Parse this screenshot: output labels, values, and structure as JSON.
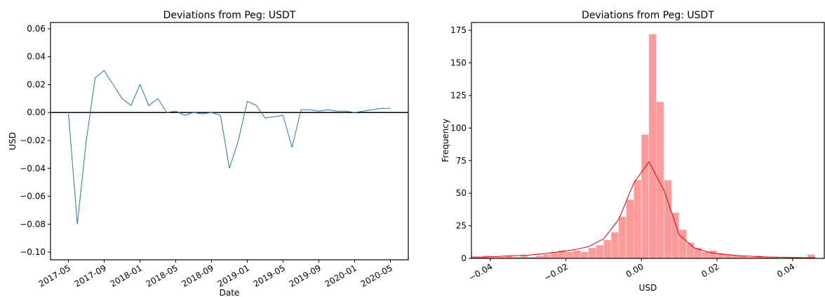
{
  "chart_data": [
    {
      "type": "line",
      "title": "Deviations from Peg: USDT",
      "x_label": "Date",
      "y_label": "USD",
      "x": [
        "2017-05",
        "2017-06",
        "2017-07",
        "2017-08",
        "2017-09",
        "2017-10",
        "2017-11",
        "2017-12",
        "2018-01",
        "2018-02",
        "2018-03",
        "2018-04",
        "2018-05",
        "2018-06",
        "2018-07",
        "2018-08",
        "2018-09",
        "2018-10",
        "2018-11",
        "2018-12",
        "2019-01",
        "2019-02",
        "2019-03",
        "2019-04",
        "2019-05",
        "2019-06",
        "2019-07",
        "2019-08",
        "2019-09",
        "2019-10",
        "2019-11",
        "2019-12",
        "2020-01",
        "2020-02",
        "2020-03",
        "2020-04",
        "2020-05"
      ],
      "series": [
        {
          "name": "USDT",
          "color": "#1f77b4",
          "values": [
            0.0,
            -0.08,
            -0.02,
            0.025,
            0.03,
            0.02,
            0.01,
            0.005,
            0.02,
            0.005,
            0.01,
            0.0,
            0.001,
            -0.002,
            0.0,
            -0.001,
            0.0,
            -0.002,
            -0.04,
            -0.02,
            0.008,
            0.005,
            -0.004,
            -0.003,
            -0.002,
            -0.025,
            0.002,
            0.002,
            0.001,
            0.002,
            0.001,
            0.001,
            0.0,
            0.001,
            0.002,
            0.003,
            0.003
          ]
        }
      ],
      "xlim": [
        "2017-03",
        "2020-07"
      ],
      "xticks": [
        "2017-05",
        "2017-09",
        "2018-01",
        "2018-05",
        "2018-09",
        "2019-01",
        "2019-05",
        "2019-09",
        "2020-01",
        "2020-05"
      ],
      "ylim": [
        -0.1055,
        0.0645
      ],
      "yticks": [
        {
          "value": -0.1,
          "label": "−0.10"
        },
        {
          "value": -0.08,
          "label": "−0.08"
        },
        {
          "value": -0.06,
          "label": "−0.06"
        },
        {
          "value": -0.04,
          "label": "−0.04"
        },
        {
          "value": -0.02,
          "label": "−0.02"
        },
        {
          "value": 0,
          "label": "0.00"
        },
        0.02,
        0.04,
        0.06
      ],
      "hline": 0
    },
    {
      "type": "histogram",
      "title": "Deviations from Peg: USDT",
      "x_label": "USD",
      "y_label": "Frequency",
      "color": "#ff9a9a",
      "bins": [
        -0.046,
        -0.044,
        -0.042,
        -0.04,
        -0.038,
        -0.036,
        -0.034,
        -0.032,
        -0.03,
        -0.028,
        -0.026,
        -0.024,
        -0.022,
        -0.02,
        -0.018,
        -0.016,
        -0.014,
        -0.012,
        -0.01,
        -0.008,
        -0.006,
        -0.004,
        -0.002,
        0.0,
        0.002,
        0.004,
        0.006,
        0.008,
        0.01,
        0.012,
        0.014,
        0.016,
        0.018,
        0.02,
        0.022,
        0.024,
        0.026,
        0.028,
        0.03,
        0.032,
        0.034,
        0.036,
        0.038,
        0.04,
        0.042,
        0.044,
        0.046,
        0.048
      ],
      "values": [
        1,
        1,
        2,
        1,
        1,
        2,
        1,
        2,
        1,
        2,
        3,
        5,
        6,
        5,
        6,
        5,
        8,
        10,
        14,
        20,
        32,
        45,
        60,
        95,
        172,
        120,
        60,
        35,
        22,
        12,
        8,
        5,
        6,
        4,
        3,
        2,
        2,
        1,
        2,
        1,
        1,
        0,
        1,
        1,
        0,
        3,
        0
      ],
      "kde": {
        "color": "#e00000",
        "x": [
          -0.046,
          -0.042,
          -0.038,
          -0.034,
          -0.03,
          -0.026,
          -0.022,
          -0.018,
          -0.014,
          -0.01,
          -0.006,
          -0.002,
          0.002,
          0.006,
          0.01,
          0.014,
          0.018,
          0.022,
          0.026,
          0.03,
          0.034,
          0.038,
          0.042,
          0.046
        ],
        "values": [
          1,
          1,
          1.5,
          2,
          2.5,
          3.5,
          5,
          6.5,
          9,
          15,
          30,
          58,
          74,
          52,
          18,
          8,
          4.5,
          3,
          2,
          1.5,
          1,
          0.8,
          0.6,
          0.5
        ]
      },
      "xlim": [
        -0.045,
        0.0484
      ],
      "xticks": [
        {
          "value": -0.04,
          "label": "−0.04"
        },
        {
          "value": -0.02,
          "label": "−0.02"
        },
        {
          "value": 0,
          "label": "0.00"
        },
        0.02,
        0.04
      ],
      "ylim": [
        0,
        181
      ],
      "yticks": [
        0,
        25,
        50,
        75,
        100,
        125,
        150,
        175
      ]
    }
  ]
}
